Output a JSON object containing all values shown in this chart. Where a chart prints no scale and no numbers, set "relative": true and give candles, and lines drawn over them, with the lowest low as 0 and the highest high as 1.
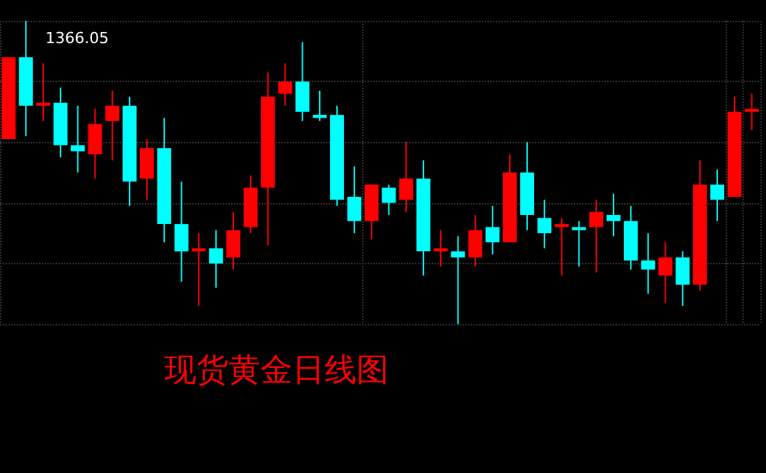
{
  "chart_data": {
    "type": "candlestick",
    "title": "现货黄金日线图",
    "relative": true,
    "grid": true,
    "annotations": [
      "1366.05"
    ],
    "categories": [
      null,
      null,
      null,
      null,
      null,
      null,
      null,
      null,
      null,
      null,
      null,
      null,
      null,
      null,
      null,
      null,
      null,
      null,
      null,
      null,
      null,
      null,
      null,
      null,
      null,
      null,
      null,
      null,
      null,
      null,
      null,
      null,
      null,
      null,
      null,
      null,
      null,
      null,
      null,
      null,
      null,
      null,
      null,
      null
    ],
    "ohlc": [
      [
        0.61,
        0.88,
        0.61,
        0.88
      ],
      [
        0.88,
        1,
        0.62,
        0.72
      ],
      [
        0.72,
        0.86,
        0.67,
        0.73
      ],
      [
        0.73,
        0.78,
        0.55,
        0.59
      ],
      [
        0.59,
        0.72,
        0.5,
        0.57
      ],
      [
        0.56,
        0.71,
        0.48,
        0.66
      ],
      [
        0.67,
        0.77,
        0.54,
        0.72
      ],
      [
        0.72,
        0.75,
        0.39,
        0.47
      ],
      [
        0.48,
        0.61,
        0.41,
        0.58
      ],
      [
        0.58,
        0.68,
        0.27,
        0.33
      ],
      [
        0.33,
        0.47,
        0.14,
        0.24
      ],
      [
        0.24,
        0.3,
        0.06,
        0.25
      ],
      [
        0.25,
        0.31,
        0.12,
        0.2
      ],
      [
        0.22,
        0.37,
        0.18,
        0.31
      ],
      [
        0.32,
        0.49,
        0.3,
        0.45
      ],
      [
        0.45,
        0.83,
        0.26,
        0.75
      ],
      [
        0.76,
        0.86,
        0.72,
        0.8
      ],
      [
        0.8,
        0.93,
        0.67,
        0.7
      ],
      [
        0.69,
        0.77,
        0.67,
        0.68
      ],
      [
        0.69,
        0.72,
        0.39,
        0.41
      ],
      [
        0.42,
        0.52,
        0.3,
        0.34
      ],
      [
        0.34,
        0.46,
        0.28,
        0.46
      ],
      [
        0.45,
        0.46,
        0.36,
        0.4
      ],
      [
        0.41,
        0.6,
        0.37,
        0.48
      ],
      [
        0.48,
        0.54,
        0.16,
        0.24
      ],
      [
        0.24,
        0.31,
        0.19,
        0.25
      ],
      [
        0.24,
        0.29,
        0,
        0.22
      ],
      [
        0.22,
        0.36,
        0.19,
        0.31
      ],
      [
        0.32,
        0.39,
        0.23,
        0.27
      ],
      [
        0.27,
        0.56,
        0.27,
        0.5
      ],
      [
        0.5,
        0.6,
        0.31,
        0.36
      ],
      [
        0.35,
        0.41,
        0.25,
        0.3
      ],
      [
        0.32,
        0.35,
        0.16,
        0.33
      ],
      [
        0.32,
        0.34,
        0.19,
        0.31
      ],
      [
        0.32,
        0.41,
        0.17,
        0.37
      ],
      [
        0.36,
        0.43,
        0.29,
        0.34
      ],
      [
        0.34,
        0.39,
        0.18,
        0.21
      ],
      [
        0.21,
        0.3,
        0.1,
        0.18
      ],
      [
        0.16,
        0.27,
        0.07,
        0.22
      ],
      [
        0.22,
        0.24,
        0.06,
        0.13
      ],
      [
        0.13,
        0.54,
        0.11,
        0.46
      ],
      [
        0.46,
        0.51,
        0.34,
        0.41
      ],
      [
        0.42,
        0.75,
        0.42,
        0.7
      ],
      [
        0.7,
        0.76,
        0.64,
        0.71
      ]
    ]
  }
}
